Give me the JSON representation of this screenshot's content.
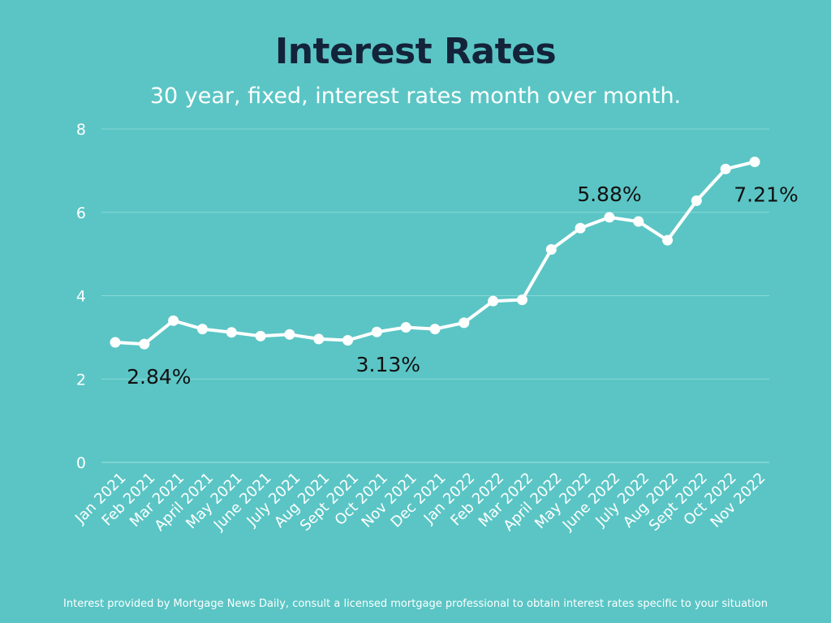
{
  "colors": {
    "background": "#5bc5c5",
    "title": "#13233a",
    "line": "#ffffff",
    "grid": "#8ad8d8",
    "annotation": "#111111",
    "text": "#ffffff"
  },
  "header": {
    "title": "Interest Rates",
    "subtitle": "30 year, fixed, interest rates month over month."
  },
  "footer": {
    "note": "Interest provided by Mortgage News Daily, consult a licensed mortgage professional to obtain interest rates specific to your situation"
  },
  "chart_data": {
    "type": "line",
    "title": "Interest Rates",
    "subtitle": "30 year, fixed, interest rates month over month.",
    "xlabel": "",
    "ylabel": "",
    "ylim": [
      0,
      8
    ],
    "yticks": [
      0,
      2,
      4,
      6,
      8
    ],
    "grid": true,
    "categories": [
      "Jan 2021",
      "Feb 2021",
      "Mar 2021",
      "April 2021",
      "May 2021",
      "June 2021",
      "July 2021",
      "Aug 2021",
      "Sept 2021",
      "Oct 2021",
      "Nov 2021",
      "Dec 2021",
      "Jan 2022",
      "Feb 2022",
      "Mar 2022",
      "April 2022",
      "May 2022",
      "June 2022",
      "July 2022",
      "Aug 2022",
      "Sept 2022",
      "Oct 2022",
      "Nov 2022"
    ],
    "series": [
      {
        "values": [
          2.88,
          2.84,
          3.4,
          3.2,
          3.12,
          3.03,
          3.07,
          2.96,
          2.93,
          3.13,
          3.24,
          3.2,
          3.35,
          3.87,
          3.9,
          5.11,
          5.62,
          5.88,
          5.78,
          5.33,
          6.28,
          7.04,
          7.21
        ]
      }
    ],
    "annotations": [
      {
        "text": "2.84%",
        "index": 1,
        "position": "below"
      },
      {
        "text": "3.13%",
        "index": 9,
        "position": "below"
      },
      {
        "text": "5.88%",
        "index": 17,
        "position": "above"
      },
      {
        "text": "7.21%",
        "index": 22,
        "position": "below"
      }
    ]
  }
}
